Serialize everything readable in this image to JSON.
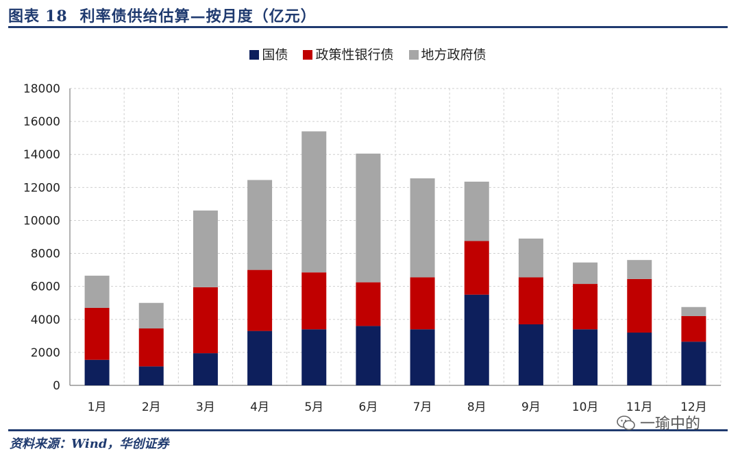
{
  "header": {
    "figure_label": "图表",
    "figure_number": "18",
    "title": "利率债供给估算—按月度（亿元）"
  },
  "source": "资料来源：Wind，华创证券",
  "watermark": "一瑜中的",
  "chart_data": {
    "type": "bar",
    "stacked": true,
    "categories": [
      "1月",
      "2月",
      "3月",
      "4月",
      "5月",
      "6月",
      "7月",
      "8月",
      "9月",
      "10月",
      "11月",
      "12月"
    ],
    "series": [
      {
        "name": "国债",
        "color": "#0d1f5c",
        "values": [
          1550,
          1150,
          1950,
          3300,
          3400,
          3600,
          3400,
          5500,
          3700,
          3400,
          3200,
          2650
        ]
      },
      {
        "name": "政策性银行债",
        "color": "#c00000",
        "values": [
          3150,
          2300,
          4000,
          3700,
          3450,
          2650,
          3150,
          3250,
          2850,
          2750,
          3250,
          1550
        ]
      },
      {
        "name": "地方政府债",
        "color": "#a6a6a6",
        "values": [
          1950,
          1550,
          4650,
          5450,
          8550,
          7800,
          6000,
          3600,
          2350,
          1300,
          1150,
          550
        ]
      }
    ],
    "ylim": [
      0,
      18000
    ],
    "yticks": [
      0,
      2000,
      4000,
      6000,
      8000,
      10000,
      12000,
      14000,
      16000,
      18000
    ],
    "grid": true,
    "legend_position": "top-center"
  }
}
